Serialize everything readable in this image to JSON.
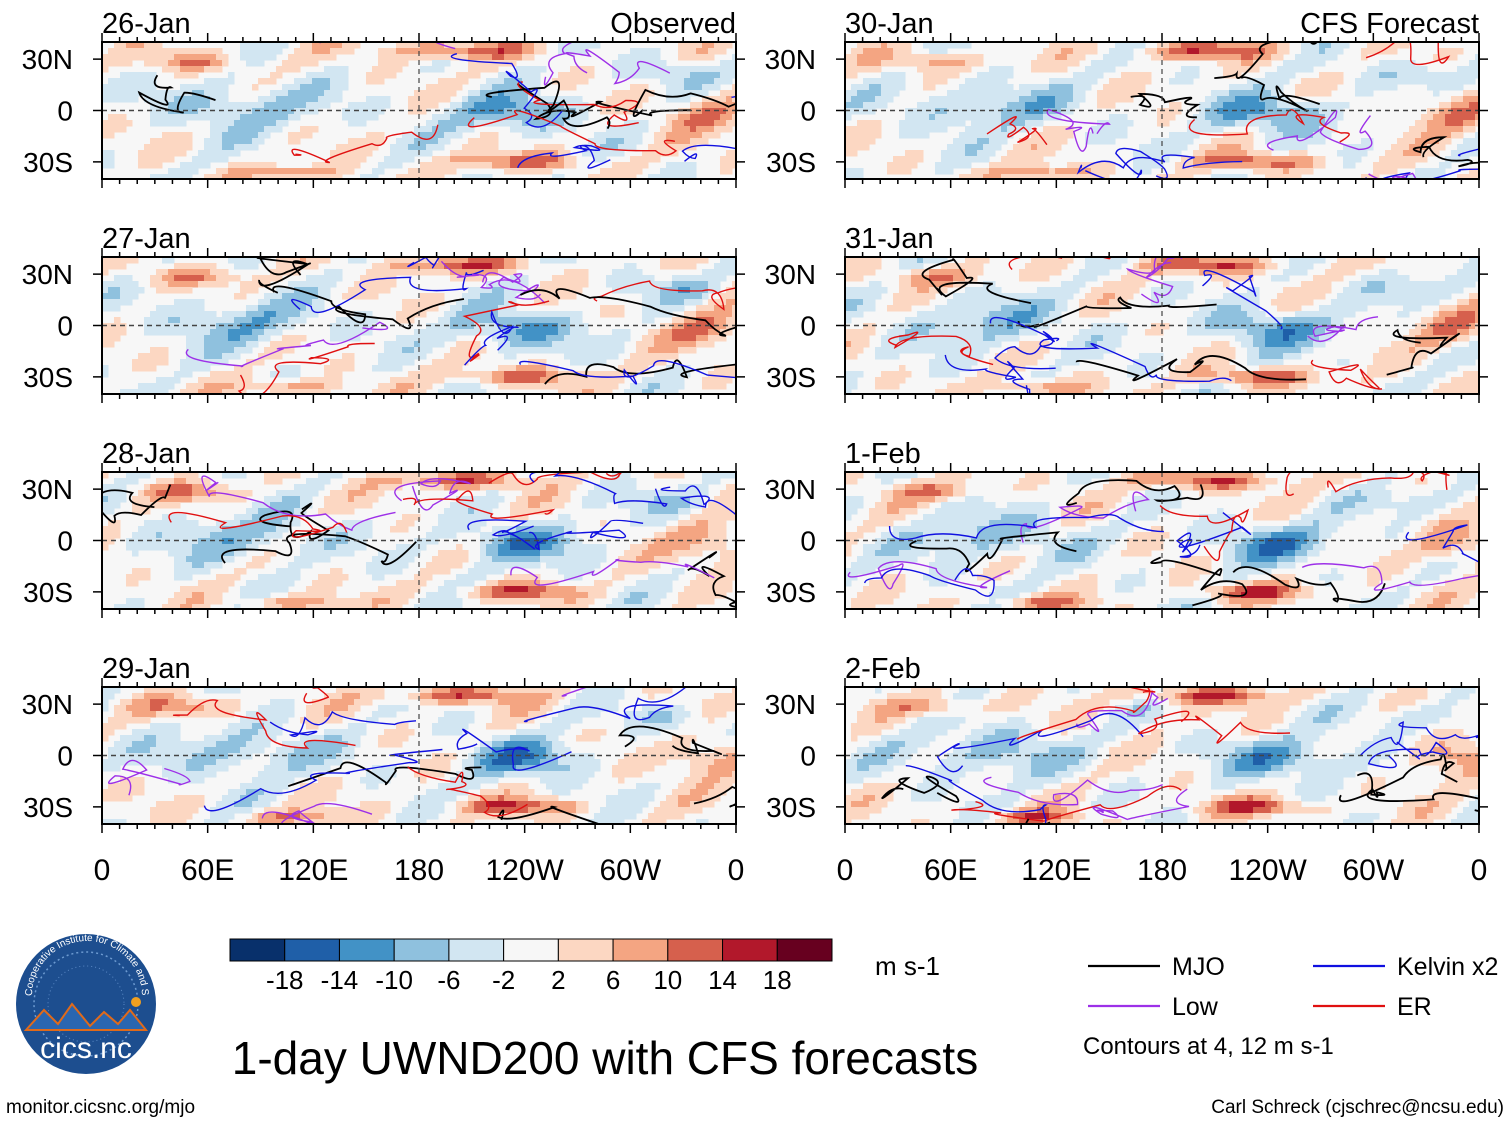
{
  "chart_data": {
    "type": "heatmap",
    "title": "1-day UWND200 with CFS forecasts",
    "units": "m s-1",
    "columns": [
      {
        "header": "Observed",
        "panels": [
          "26-Jan",
          "27-Jan",
          "28-Jan",
          "29-Jan"
        ]
      },
      {
        "header": "CFS Forecast",
        "panels": [
          "30-Jan",
          "31-Jan",
          "1-Feb",
          "2-Feb"
        ]
      }
    ],
    "x_ticks": [
      "0",
      "60E",
      "120E",
      "180",
      "120W",
      "60W",
      "0"
    ],
    "y_ticks": [
      "30N",
      "0",
      "30S"
    ],
    "x_range_deg": [
      0,
      360
    ],
    "y_range_deg": [
      -40,
      40
    ],
    "colorbar": {
      "labels": [
        "-18",
        "-14",
        "-10",
        "-6",
        "-2",
        "2",
        "6",
        "10",
        "14",
        "18"
      ],
      "colors": [
        "#08306b",
        "#1f5fa8",
        "#4292c6",
        "#8fc1de",
        "#d2e6f2",
        "#f7f7f7",
        "#fcd7c2",
        "#f4a582",
        "#d6604d",
        "#b2182b",
        "#67001f"
      ]
    },
    "legend": [
      {
        "label": "MJO",
        "color": "#000000"
      },
      {
        "label": "Kelvin x2",
        "color": "#1010e0"
      },
      {
        "label": "Low",
        "color": "#9d30e8"
      },
      {
        "label": "ER",
        "color": "#e01010"
      }
    ],
    "contour_note": "Contours at 4, 12 m s-1"
  },
  "logo": {
    "text": "cics.nc",
    "ring_text": "Cooperative Institute for Climate and Satellites"
  },
  "footer": {
    "left": "monitor.cicsnc.org/mjo",
    "right": "Carl Schreck (cjschrec@ncsu.edu)"
  }
}
